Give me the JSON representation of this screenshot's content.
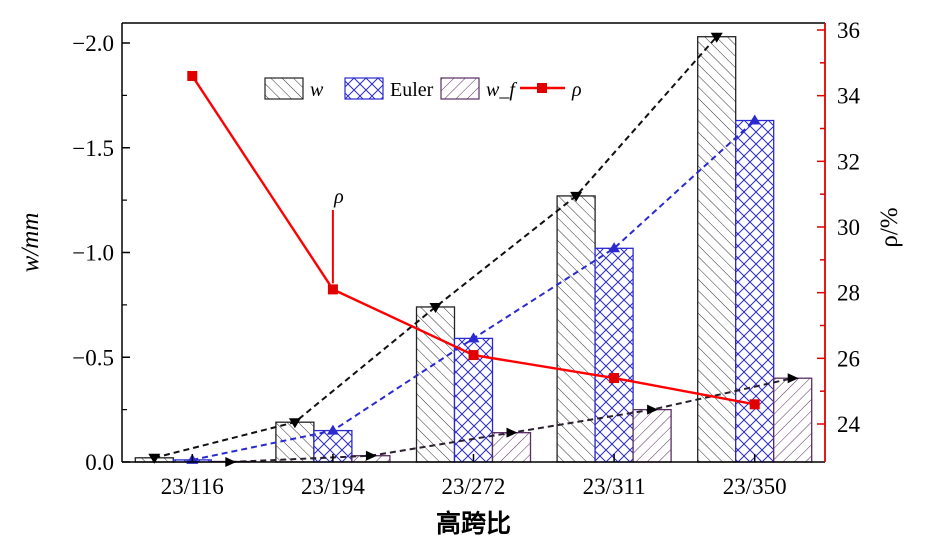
{
  "chart_data": {
    "type": "bar",
    "categories": [
      "23/116",
      "23/194",
      "23/272",
      "23/311",
      "23/350"
    ],
    "xlabel": "高跨比",
    "ylabel": "w/mm",
    "y2label": "ρ/%",
    "ylim": [
      0.0,
      -2.1
    ],
    "y2lim": [
      23,
      36
    ],
    "yticks": [
      "0.0",
      "−0.5",
      "−1.0",
      "−1.5",
      "−2.0"
    ],
    "y2ticks": [
      "24",
      "26",
      "28",
      "30",
      "32",
      "34",
      "36"
    ],
    "series": [
      {
        "name": "w",
        "kind": "bar",
        "values": [
          -0.02,
          -0.19,
          -0.74,
          -1.27,
          -2.03
        ],
        "color": "#000000"
      },
      {
        "name": "Euler",
        "kind": "bar",
        "values": [
          -0.01,
          -0.15,
          -0.59,
          -1.02,
          -1.63
        ],
        "color": "#2323c8"
      },
      {
        "name": "w_f",
        "kind": "bar",
        "values": [
          0.0,
          -0.03,
          -0.14,
          -0.25,
          -0.4
        ],
        "color": "#5a2d64"
      },
      {
        "name": "ρ",
        "kind": "line",
        "axis": "right",
        "values": [
          34.6,
          28.1,
          26.1,
          25.4,
          24.6
        ],
        "color": "#ff0000"
      }
    ],
    "annotations": [
      {
        "text": "ρ",
        "category": "23/194"
      }
    ],
    "legend_placement": "top",
    "grid": false
  }
}
